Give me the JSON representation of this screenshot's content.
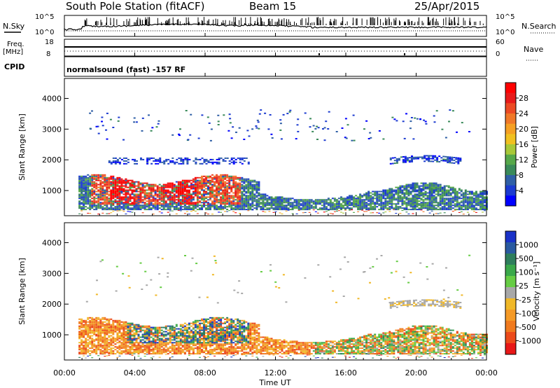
{
  "header": {
    "station": "South Pole Station (fitACF)",
    "beam": "Beam 15",
    "date": "25/Apr/2015"
  },
  "top_panels": {
    "nsky_label": "N.Sky",
    "nsearch_label": "N.Search",
    "nsky_ticks": [
      "10^5",
      "10^0"
    ],
    "nsearch_ticks": [
      "10^5",
      "10^0"
    ],
    "freq_label": "Freq.",
    "freq_unit": "[MHz]",
    "freq_ticks": [
      "18",
      "8"
    ],
    "nave_label": "Nave",
    "nave_ticks": [
      "60",
      "0"
    ],
    "cpid_label": "CPID",
    "cpid_text": "normalsound (fast) -157 RF"
  },
  "chart_data": [
    {
      "type": "heatmap",
      "quantity": "Power",
      "xlabel": "",
      "ylabel": "Slant Range [km]",
      "yticks": [
        1000,
        2000,
        3000,
        4000
      ],
      "ylim": [
        180,
        4650
      ],
      "xlim_hours": [
        0,
        24
      ],
      "colorbar": {
        "label": "Power [dB]",
        "ticks": [
          "4",
          "8",
          "12",
          "16",
          "20",
          "24",
          "28"
        ],
        "colors": [
          "#0000ff",
          "#1c3bd0",
          "#2f5fa6",
          "#3a8a5a",
          "#56a84a",
          "#a8c838",
          "#f0c020",
          "#f5a023",
          "#f07828",
          "#ec4a24",
          "#e81a1a",
          "#ff0000"
        ]
      },
      "features": [
        {
          "name": "lower band",
          "t_start": 0.8,
          "t_end": 24,
          "range_min": 350,
          "range_max": 1450,
          "level": "moderate"
        },
        {
          "name": "intense echoes",
          "t_start": 1.5,
          "t_end": 10.0,
          "range_min": 500,
          "range_max": 1600,
          "level": "high (24-28 dB)"
        },
        {
          "name": "2000 km band",
          "t_start": 2.5,
          "t_end": 10.5,
          "range_min": 1800,
          "range_max": 2100,
          "level": "low"
        },
        {
          "name": "2000 km band late",
          "t_start": 18.5,
          "t_end": 22.5,
          "range_min": 1750,
          "range_max": 2100,
          "level": "low"
        },
        {
          "name": "3000-3500 km echoes",
          "t_start": 1.0,
          "t_end": 12.0,
          "range_min": 2800,
          "range_max": 3600,
          "level": "low"
        }
      ]
    },
    {
      "type": "heatmap",
      "quantity": "Velocity",
      "xlabel": "Time UT",
      "ylabel": "Slant Range [km]",
      "yticks": [
        1000,
        2000,
        3000,
        4000
      ],
      "ylim": [
        180,
        4650
      ],
      "xticks": [
        "00:00",
        "04:00",
        "08:00",
        "12:00",
        "16:00",
        "20:00",
        "00:00"
      ],
      "colorbar": {
        "label": "Velocity [m s⁻¹]",
        "ticks": [
          "1000",
          "500",
          "100",
          "25",
          "-25",
          "-100",
          "-500",
          "-1000"
        ],
        "colors": [
          "#1a32c8",
          "#2a5aa0",
          "#2e7e5c",
          "#3aa84a",
          "#66cc44",
          "#a8a8a8",
          "#f0b828",
          "#f59a26",
          "#f07a1e",
          "#ec4a1a",
          "#e81818"
        ]
      },
      "features": [
        {
          "name": "lower band",
          "t_start": 0.8,
          "t_end": 24,
          "range_min": 350,
          "range_max": 1500,
          "level": "mostly -25 to -500 m/s"
        },
        {
          "name": "green/blue patch",
          "t_start": 3.5,
          "t_end": 10.5,
          "range_min": 700,
          "range_max": 1500,
          "level": "+100 to +500 m/s"
        },
        {
          "name": "2000 km band",
          "t_start": 18.5,
          "t_end": 22.5,
          "range_min": 1750,
          "range_max": 2100,
          "level": "near 0"
        }
      ]
    }
  ]
}
